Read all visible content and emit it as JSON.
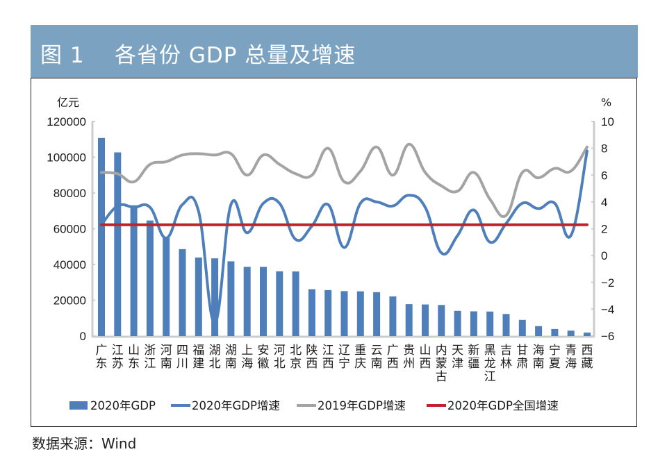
{
  "figure": {
    "title": "图 1    各省份 GDP 总量及增速",
    "source": "数据来源：Wind"
  },
  "colors": {
    "title_bg": "#7ba3c1",
    "bar": "#4f7fbb",
    "growth_2020": "#4f7fbb",
    "growth_2019": "#a3a3a3",
    "national": "#c0222c",
    "axis": "#cccccc"
  },
  "chart_data": {
    "type": "bar",
    "title": "各省份 GDP 总量及增速",
    "xlabel": "",
    "ylabel": "亿元",
    "y2label": "%",
    "ylim": [
      0,
      120000
    ],
    "y2lim": [
      -6,
      10
    ],
    "yticks": [
      "0",
      "20000",
      "40000",
      "60000",
      "80000",
      "100000",
      "120000"
    ],
    "y2ticks": [
      "−6",
      "−4",
      "−2",
      "0",
      "2",
      "4",
      "6",
      "8",
      "10"
    ],
    "y2tick_values": [
      -6,
      -4,
      -2,
      0,
      2,
      4,
      6,
      8,
      10
    ],
    "ytick_values": [
      0,
      20000,
      40000,
      60000,
      80000,
      100000,
      120000
    ],
    "grid": false,
    "legend_position": "bottom",
    "categories": [
      "广东",
      "江苏",
      "山东",
      "浙江",
      "河南",
      "四川",
      "福建",
      "湖北",
      "湖南",
      "上海",
      "安徽",
      "河北",
      "北京",
      "陕西",
      "江西",
      "辽宁",
      "重庆",
      "云南",
      "广西",
      "贵州",
      "山西",
      "内蒙古",
      "天津",
      "新疆",
      "黑龙江",
      "吉林",
      "甘肃",
      "海南",
      "宁夏",
      "青海",
      "西藏"
    ],
    "series": [
      {
        "name": "2020年GDP",
        "type": "bar",
        "axis": "left",
        "values": [
          110760,
          102719,
          73129,
          64613,
          54997,
          48599,
          43904,
          43443,
          41781,
          38701,
          38681,
          36207,
          36103,
          26182,
          25692,
          25115,
          25003,
          24522,
          22157,
          17827,
          17652,
          17360,
          14084,
          13798,
          13699,
          12311,
          9017,
          5532,
          3921,
          3006,
          1903
        ]
      },
      {
        "name": "2020年GDP增速",
        "type": "line",
        "axis": "right",
        "values": [
          2.3,
          3.7,
          3.6,
          3.6,
          1.3,
          3.8,
          3.3,
          -5.0,
          3.8,
          1.7,
          3.9,
          3.9,
          1.2,
          2.2,
          3.8,
          0.6,
          3.9,
          4.0,
          3.7,
          4.5,
          3.6,
          0.2,
          1.5,
          3.4,
          1.0,
          2.4,
          3.9,
          3.5,
          3.9,
          1.5,
          7.8
        ]
      },
      {
        "name": "2019年GDP增速",
        "type": "line",
        "axis": "right",
        "values": [
          6.2,
          6.1,
          5.5,
          6.8,
          7.0,
          7.5,
          7.6,
          7.5,
          7.6,
          6.0,
          7.5,
          6.8,
          6.1,
          6.0,
          8.0,
          5.5,
          6.3,
          8.1,
          6.0,
          8.3,
          6.2,
          5.2,
          4.8,
          6.2,
          4.2,
          3.0,
          6.2,
          5.8,
          6.5,
          6.3,
          8.1
        ]
      },
      {
        "name": "2020年GDP全国增速",
        "type": "line",
        "axis": "right",
        "values": [
          2.3,
          2.3,
          2.3,
          2.3,
          2.3,
          2.3,
          2.3,
          2.3,
          2.3,
          2.3,
          2.3,
          2.3,
          2.3,
          2.3,
          2.3,
          2.3,
          2.3,
          2.3,
          2.3,
          2.3,
          2.3,
          2.3,
          2.3,
          2.3,
          2.3,
          2.3,
          2.3,
          2.3,
          2.3,
          2.3,
          2.3
        ]
      }
    ]
  }
}
